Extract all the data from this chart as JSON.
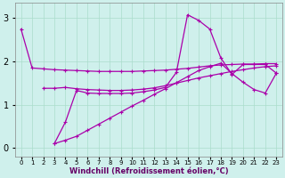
{
  "background_color": "#cff0ec",
  "grid_color": "#aaddcc",
  "line_color": "#aa00aa",
  "xlabel": "Windchill (Refroidissement éolien,°C)",
  "xlabel_color": "#660066",
  "xlabel_bg": "#cff0ec",
  "ylim": [
    -0.2,
    3.35
  ],
  "xlim": [
    -0.5,
    23.5
  ],
  "yticks": [
    0,
    1,
    2,
    3
  ],
  "xtick_labels": [
    "0",
    "1",
    "2",
    "3",
    "4",
    "5",
    "6",
    "7",
    "8",
    "9",
    "10",
    "11",
    "12",
    "13",
    "14",
    "15",
    "16",
    "17",
    "18",
    "19",
    "20",
    "21",
    "22",
    "23"
  ],
  "series": [
    {
      "name": "line1_flat",
      "x": [
        0,
        1,
        2,
        3,
        4,
        5,
        6,
        7,
        8,
        9,
        10,
        11,
        12,
        13,
        14,
        15,
        16,
        17,
        18,
        19,
        20,
        21,
        22,
        23
      ],
      "y": [
        2.75,
        1.85,
        1.83,
        1.81,
        1.8,
        1.79,
        1.78,
        1.77,
        1.77,
        1.77,
        1.77,
        1.78,
        1.79,
        1.8,
        1.82,
        1.84,
        1.87,
        1.9,
        1.92,
        1.93,
        1.94,
        1.94,
        1.95,
        1.95
      ]
    },
    {
      "name": "line2_mid",
      "x": [
        2,
        3,
        4,
        5,
        6,
        7,
        8,
        9,
        10,
        11,
        12,
        13,
        14,
        15,
        16,
        17,
        18,
        19,
        20,
        21,
        22,
        23
      ],
      "y": [
        1.38,
        1.38,
        1.4,
        1.37,
        1.35,
        1.34,
        1.33,
        1.33,
        1.34,
        1.36,
        1.39,
        1.44,
        1.5,
        1.56,
        1.62,
        1.67,
        1.72,
        1.77,
        1.81,
        1.85,
        1.88,
        1.9
      ]
    },
    {
      "name": "line3_peak",
      "x": [
        3,
        4,
        5,
        6,
        7,
        8,
        9,
        10,
        11,
        12,
        13,
        14,
        15,
        16,
        17,
        18,
        19,
        20,
        21,
        22,
        23
      ],
      "y": [
        0.1,
        0.6,
        1.33,
        1.27,
        1.26,
        1.26,
        1.26,
        1.27,
        1.3,
        1.34,
        1.4,
        1.75,
        3.08,
        2.95,
        2.75,
        2.08,
        1.7,
        1.93,
        1.93,
        1.93,
        1.73
      ]
    },
    {
      "name": "line4_diagonal",
      "x": [
        3,
        4,
        5,
        6,
        7,
        8,
        9,
        10,
        11,
        12,
        13,
        14,
        15,
        16,
        17,
        18,
        19,
        20,
        21,
        22,
        23
      ],
      "y": [
        0.1,
        0.18,
        0.27,
        0.41,
        0.55,
        0.69,
        0.83,
        0.97,
        1.1,
        1.24,
        1.37,
        1.51,
        1.65,
        1.79,
        1.88,
        1.96,
        1.72,
        1.52,
        1.35,
        1.27,
        1.73
      ]
    }
  ]
}
